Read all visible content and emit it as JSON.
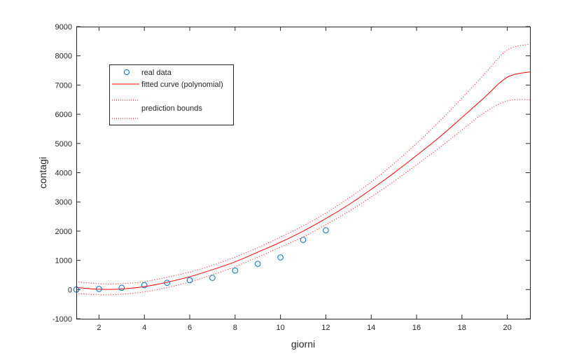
{
  "chart_data": {
    "type": "scatter",
    "xlabel": "giorni",
    "ylabel": "contagi",
    "xlim": [
      1,
      21
    ],
    "ylim": [
      -1000,
      9000
    ],
    "xticks": [
      2,
      4,
      6,
      8,
      10,
      12,
      14,
      16,
      18,
      20
    ],
    "yticks": [
      -1000,
      0,
      1000,
      2000,
      3000,
      4000,
      5000,
      6000,
      7000,
      8000,
      9000
    ],
    "grid": false,
    "legend_position": "top-left",
    "series": [
      {
        "name": "real data",
        "kind": "markers",
        "marker": "circle",
        "color": "#0072bd",
        "x": [
          1,
          2,
          3,
          4,
          5,
          6,
          7,
          8,
          9,
          10,
          11,
          12
        ],
        "y": [
          0,
          20,
          60,
          150,
          230,
          320,
          400,
          650,
          880,
          1100,
          1700,
          2030
        ]
      },
      {
        "name": "fitted curve (polynomial)",
        "kind": "line",
        "color": "#ff0000",
        "x": [
          1,
          2,
          3,
          4,
          5,
          6,
          7,
          8,
          9,
          10,
          11,
          12,
          13,
          14,
          15,
          16,
          17,
          18,
          19,
          20,
          21
        ],
        "y": [
          70,
          10,
          20,
          100,
          250,
          440,
          680,
          950,
          1280,
          1620,
          2000,
          2430,
          2900,
          3430,
          3990,
          4590,
          5210,
          5890,
          6580,
          7270,
          7450
        ]
      },
      {
        "name": "",
        "kind": "dotted",
        "color": "#ff0000",
        "x": [
          1,
          2,
          3,
          4,
          5,
          6,
          7,
          8,
          9,
          10,
          11,
          12,
          13,
          14,
          15,
          16,
          17,
          18,
          19,
          20,
          21
        ],
        "y": [
          270,
          200,
          200,
          270,
          420,
          600,
          830,
          1110,
          1430,
          1790,
          2180,
          2620,
          3120,
          3680,
          4310,
          5000,
          5750,
          6550,
          7380,
          8200,
          8400
        ]
      },
      {
        "name": "prediction bounds",
        "kind": "dotted",
        "color": "#ff0000",
        "x": [
          1,
          2,
          3,
          4,
          5,
          6,
          7,
          8,
          9,
          10,
          11,
          12,
          13,
          14,
          15,
          16,
          17,
          18,
          19,
          20,
          21
        ],
        "y": [
          -130,
          -180,
          -160,
          -80,
          70,
          260,
          510,
          780,
          1110,
          1450,
          1800,
          2220,
          2670,
          3170,
          3700,
          4270,
          4850,
          5460,
          6060,
          6460,
          6500
        ]
      }
    ]
  }
}
